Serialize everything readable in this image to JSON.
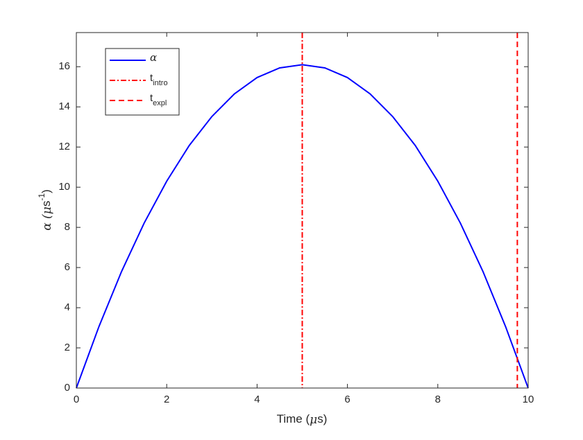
{
  "chart_data": {
    "type": "line",
    "xlabel": "Time (",
    "xlabel_mu": "μ",
    "xlabel_end": "s)",
    "ylabel": "α (",
    "ylabel_mu": "μ",
    "ylabel_mid": "s",
    "ylabel_sup": "-1",
    "ylabel_end": ")",
    "x": [
      0,
      0.5,
      1,
      1.5,
      2,
      2.5,
      3,
      3.5,
      4,
      4.5,
      5,
      5.5,
      6,
      6.5,
      7,
      7.5,
      8,
      8.5,
      9,
      9.5,
      10
    ],
    "series": [
      {
        "name": "α",
        "color": "#0000ff",
        "values": [
          0,
          3.06,
          5.8,
          8.21,
          10.3,
          12.08,
          13.52,
          14.65,
          15.46,
          15.94,
          16.1,
          15.94,
          15.46,
          14.65,
          13.52,
          12.08,
          10.3,
          8.21,
          5.8,
          3.06,
          0
        ]
      }
    ],
    "vlines": [
      {
        "name": "t",
        "sub": "intro",
        "x": 5,
        "color": "#ff0000",
        "dash": "dashdot"
      },
      {
        "name": "t",
        "sub": "expl",
        "x": 9.76,
        "color": "#ff0000",
        "dash": "dashed"
      }
    ],
    "xlim": [
      0,
      10
    ],
    "xticks": [
      0,
      2,
      4,
      6,
      8,
      10
    ],
    "ylim": [
      0,
      17.7
    ],
    "yticks": [
      0,
      2,
      4,
      6,
      8,
      10,
      12,
      14,
      16
    ],
    "legend": "upper-left",
    "grid": false
  }
}
